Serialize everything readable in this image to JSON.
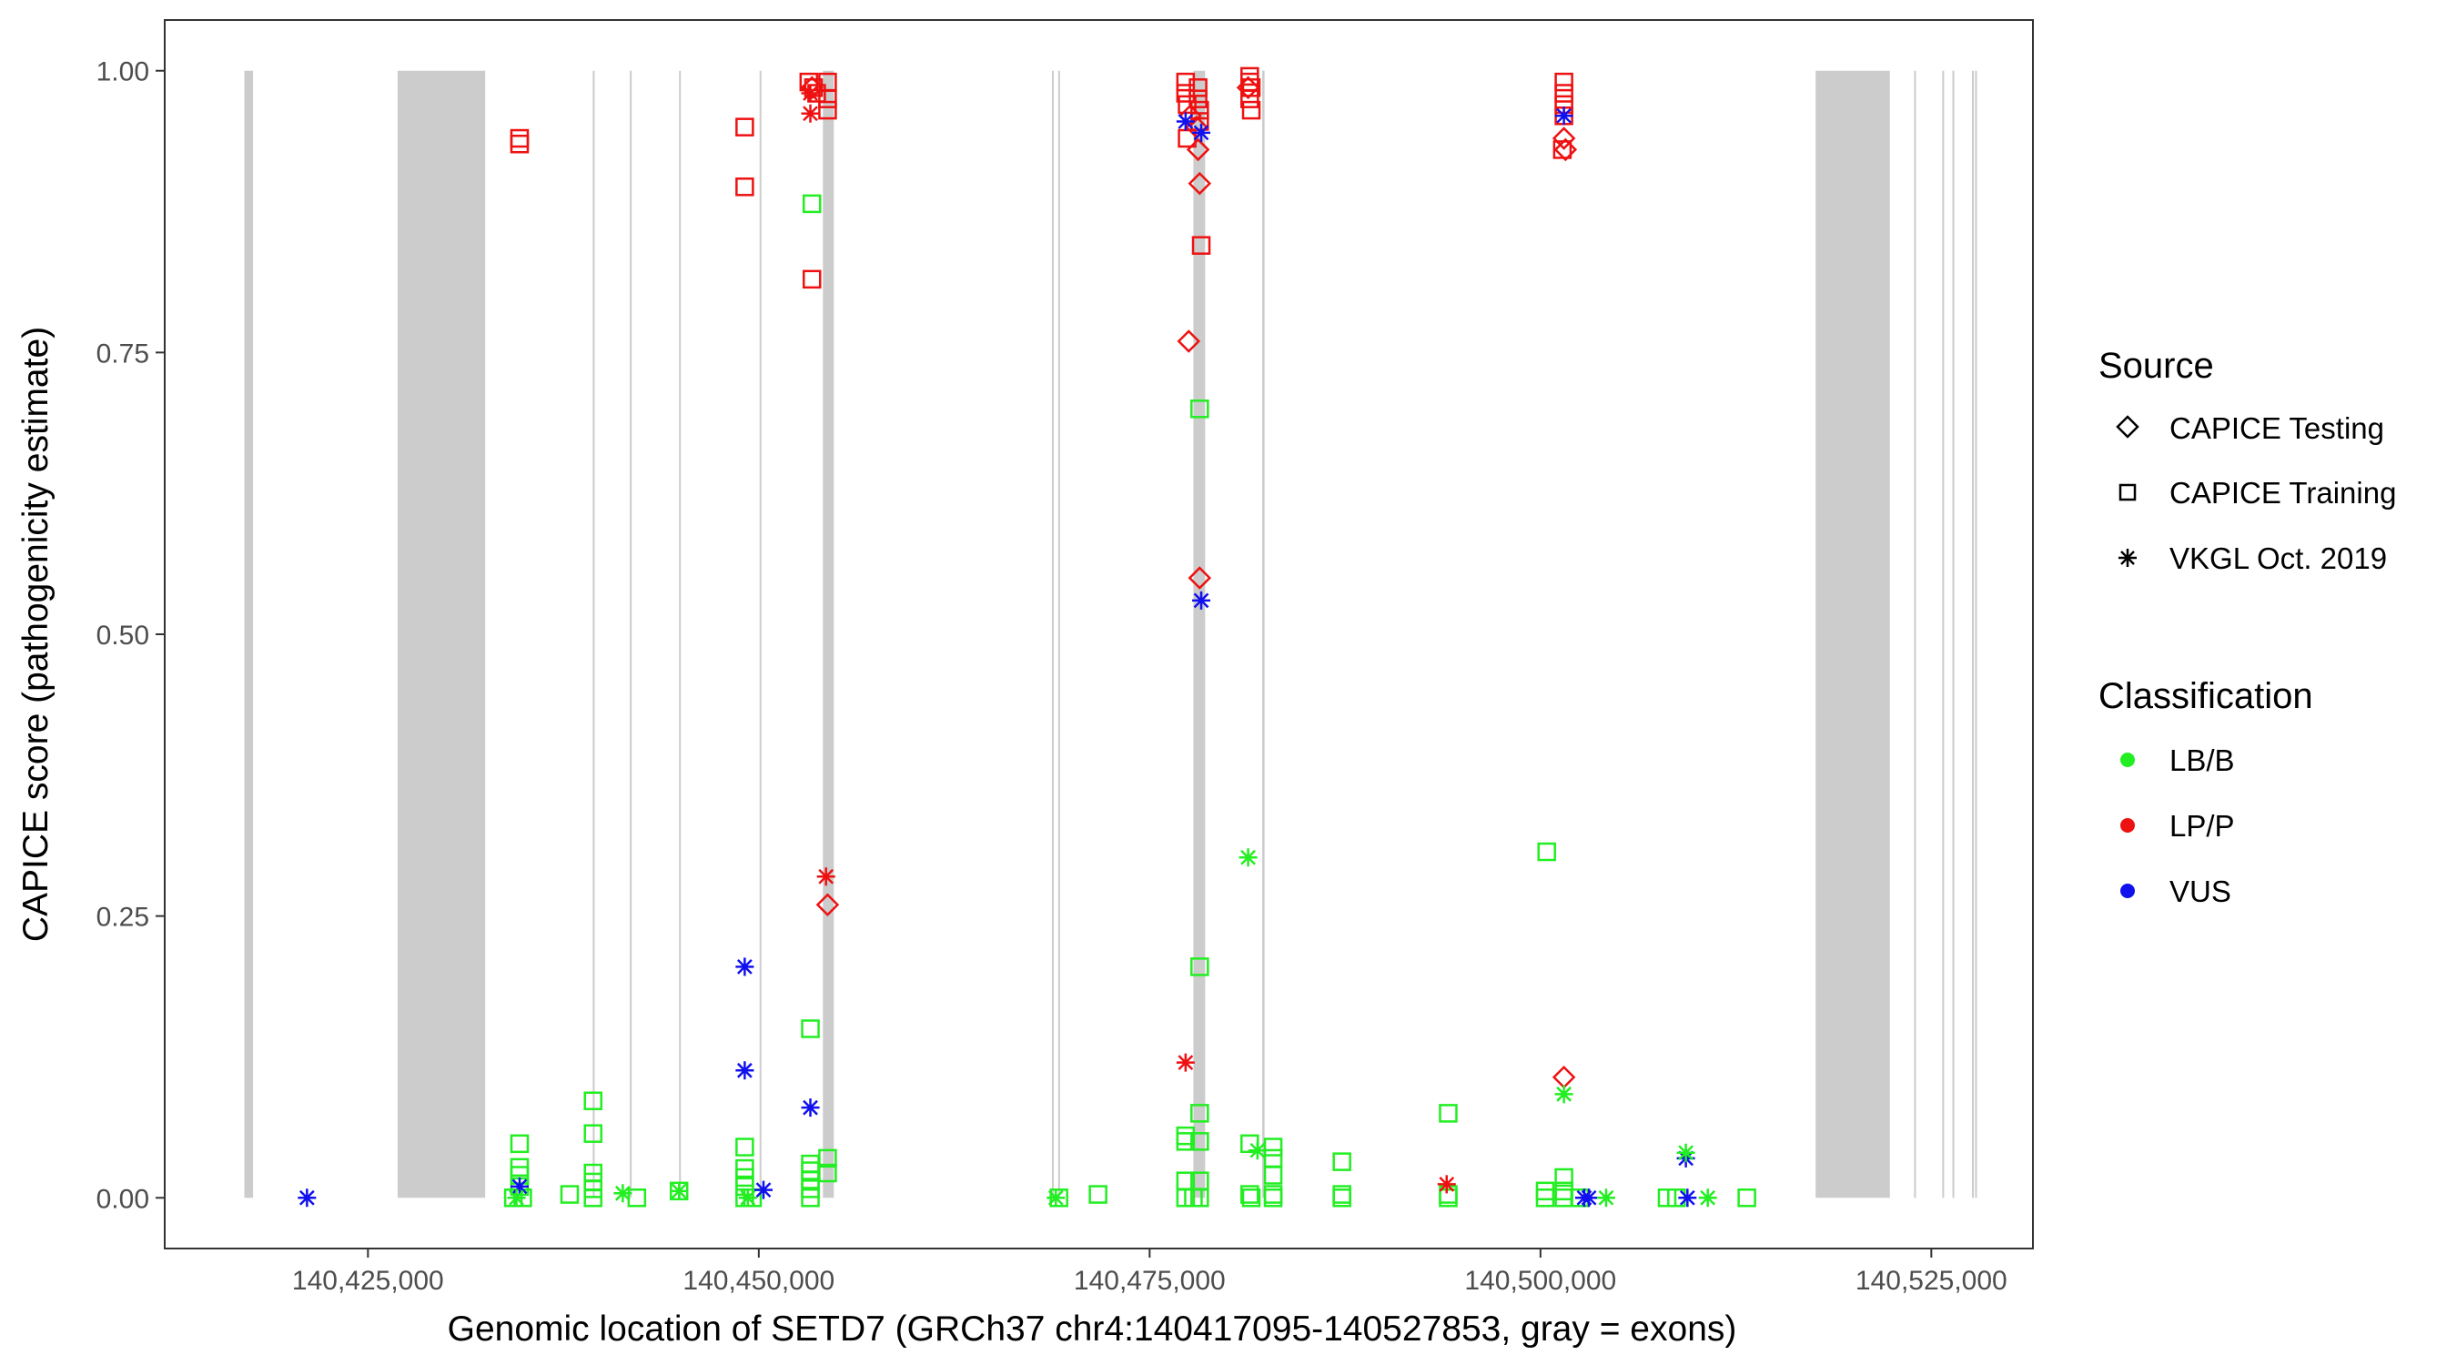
{
  "chart_data": {
    "type": "scatter",
    "xlabel": "Genomic location of SETD7 (GRCh37 chr4:140417095-140527853, gray = exons)",
    "ylabel": "CAPICE score (pathogenicity estimate)",
    "xlim": [
      140412000,
      140531500
    ],
    "ylim": [
      -0.045,
      1.045
    ],
    "xticks": [
      140425000,
      140450000,
      140475000,
      140500000,
      140525000
    ],
    "xtick_labels": [
      "140,425,000",
      "140,450,000",
      "140,475,000",
      "140,500,000",
      "140,525,000"
    ],
    "yticks": [
      0,
      0.25,
      0.5,
      0.75,
      1.0
    ],
    "ytick_labels": [
      "0.00",
      "0.25",
      "0.50",
      "0.75",
      "1.00"
    ],
    "grid": false,
    "legend_position": "right",
    "colors": {
      "LB/B": "#22ee22",
      "LP/P": "#ee1111",
      "VUS": "#1111ee",
      "exon": "#cccccc",
      "frame": "#333333"
    },
    "exons": [
      [
        140417095,
        140417650
      ],
      [
        140426900,
        140432500
      ],
      [
        140439380,
        140439500
      ],
      [
        140441750,
        140441850
      ],
      [
        140444900,
        140445000
      ],
      [
        140450050,
        140450150
      ],
      [
        140454100,
        140454800
      ],
      [
        140468750,
        140468850
      ],
      [
        140469150,
        140469250
      ],
      [
        140477800,
        140478550
      ],
      [
        140482200,
        140482350
      ],
      [
        140517600,
        140522350
      ],
      [
        140523900,
        140524000
      ],
      [
        140525700,
        140525800
      ],
      [
        140526350,
        140526450
      ],
      [
        140527600,
        140527700
      ],
      [
        140527800,
        140527853
      ]
    ],
    "legend": {
      "source_title": "Source",
      "source_items": [
        {
          "label": "CAPICE Testing",
          "shape": "diamond"
        },
        {
          "label": "CAPICE Training",
          "shape": "square"
        },
        {
          "label": "VKGL Oct. 2019",
          "shape": "star"
        }
      ],
      "class_title": "Classification",
      "class_items": [
        {
          "label": "LB/B",
          "color": "#22ee22"
        },
        {
          "label": "LP/P",
          "color": "#ee1111"
        },
        {
          "label": "VUS",
          "color": "#1111ee"
        }
      ]
    },
    "series": [
      {
        "shape": "diamond",
        "points": [
          [
            140453400,
            0.985,
            "LP/P"
          ],
          [
            140454400,
            0.26,
            "LP/P"
          ],
          [
            140477500,
            0.76,
            "LP/P"
          ],
          [
            140477600,
            0.96,
            "LP/P"
          ],
          [
            140478000,
            0.95,
            "LP/P"
          ],
          [
            140478100,
            0.93,
            "LP/P"
          ],
          [
            140478200,
            0.9,
            "LP/P"
          ],
          [
            140478200,
            0.55,
            "LP/P"
          ],
          [
            140481300,
            0.985,
            "LP/P"
          ],
          [
            140501500,
            0.94,
            "LP/P"
          ],
          [
            140501500,
            0.107,
            "LP/P"
          ],
          [
            140501600,
            0.93,
            "LP/P"
          ]
        ]
      },
      {
        "shape": "square",
        "points": [
          [
            140434700,
            0.94,
            "LP/P"
          ],
          [
            140434700,
            0.935,
            "LP/P"
          ],
          [
            140449100,
            0.95,
            "LP/P"
          ],
          [
            140449100,
            0.897,
            "LP/P"
          ],
          [
            140453400,
            0.815,
            "LP/P"
          ],
          [
            140453200,
            0.99,
            "LP/P"
          ],
          [
            140453500,
            0.985,
            "LP/P"
          ],
          [
            140453700,
            0.98,
            "LP/P"
          ],
          [
            140454400,
            0.99,
            "LP/P"
          ],
          [
            140454400,
            0.975,
            "LP/P"
          ],
          [
            140454400,
            0.965,
            "LP/P"
          ],
          [
            140477300,
            0.99,
            "LP/P"
          ],
          [
            140477300,
            0.98,
            "LP/P"
          ],
          [
            140477400,
            0.97,
            "LP/P"
          ],
          [
            140477400,
            0.94,
            "LP/P"
          ],
          [
            140478100,
            0.985,
            "LP/P"
          ],
          [
            140478100,
            0.975,
            "LP/P"
          ],
          [
            140478200,
            0.965,
            "LP/P"
          ],
          [
            140478200,
            0.955,
            "LP/P"
          ],
          [
            140478300,
            0.845,
            "LP/P"
          ],
          [
            140481400,
            0.995,
            "LP/P"
          ],
          [
            140481400,
            0.99,
            "LP/P"
          ],
          [
            140481500,
            0.985,
            "LP/P"
          ],
          [
            140481400,
            0.975,
            "LP/P"
          ],
          [
            140481500,
            0.965,
            "LP/P"
          ],
          [
            140501500,
            0.99,
            "LP/P"
          ],
          [
            140501500,
            0.98,
            "LP/P"
          ],
          [
            140501500,
            0.97,
            "LP/P"
          ],
          [
            140501500,
            0.96,
            "LP/P"
          ],
          [
            140501400,
            0.93,
            "LP/P"
          ],
          [
            140453400,
            0.882,
            "LB/B"
          ],
          [
            140478200,
            0.7,
            "LB/B"
          ],
          [
            140478200,
            0.205,
            "LB/B"
          ],
          [
            140453300,
            0.15,
            "LB/B"
          ],
          [
            140500400,
            0.307,
            "LB/B"
          ],
          [
            140434300,
            0.0,
            "LB/B"
          ],
          [
            140434700,
            0.048,
            "LB/B"
          ],
          [
            140434700,
            0.027,
            "LB/B"
          ],
          [
            140434700,
            0.02,
            "LB/B"
          ],
          [
            140434700,
            0.01,
            "LB/B"
          ],
          [
            140434900,
            0.0,
            "LB/B"
          ],
          [
            140437900,
            0.003,
            "LB/B"
          ],
          [
            140439400,
            0.086,
            "LB/B"
          ],
          [
            140439400,
            0.057,
            "LB/B"
          ],
          [
            140439400,
            0.022,
            "LB/B"
          ],
          [
            140439400,
            0.014,
            "LB/B"
          ],
          [
            140439400,
            0.008,
            "LB/B"
          ],
          [
            140439400,
            0.0,
            "LB/B"
          ],
          [
            140442200,
            0.0,
            "LB/B"
          ],
          [
            140444900,
            0.006,
            "LB/B"
          ],
          [
            140449100,
            0.045,
            "LB/B"
          ],
          [
            140449100,
            0.026,
            "LB/B"
          ],
          [
            140449100,
            0.018,
            "LB/B"
          ],
          [
            140449100,
            0.01,
            "LB/B"
          ],
          [
            140449100,
            0.0,
            "LB/B"
          ],
          [
            140449600,
            0.0,
            "LB/B"
          ],
          [
            140453300,
            0.03,
            "LB/B"
          ],
          [
            140453300,
            0.024,
            "LB/B"
          ],
          [
            140453300,
            0.016,
            "LB/B"
          ],
          [
            140453300,
            0.008,
            "LB/B"
          ],
          [
            140453300,
            0.0,
            "LB/B"
          ],
          [
            140454400,
            0.035,
            "LB/B"
          ],
          [
            140454400,
            0.022,
            "LB/B"
          ],
          [
            140469200,
            0.0,
            "LB/B"
          ],
          [
            140471700,
            0.003,
            "LB/B"
          ],
          [
            140477300,
            0.055,
            "LB/B"
          ],
          [
            140477300,
            0.05,
            "LB/B"
          ],
          [
            140477300,
            0.015,
            "LB/B"
          ],
          [
            140477300,
            0.0,
            "LB/B"
          ],
          [
            140477800,
            0.0,
            "LB/B"
          ],
          [
            140478200,
            0.075,
            "LB/B"
          ],
          [
            140478200,
            0.05,
            "LB/B"
          ],
          [
            140478200,
            0.015,
            "LB/B"
          ],
          [
            140478200,
            0.0,
            "LB/B"
          ],
          [
            140481400,
            0.048,
            "LB/B"
          ],
          [
            140481400,
            0.003,
            "LB/B"
          ],
          [
            140481500,
            0.0,
            "LB/B"
          ],
          [
            140482900,
            0.045,
            "LB/B"
          ],
          [
            140482900,
            0.035,
            "LB/B"
          ],
          [
            140482900,
            0.02,
            "LB/B"
          ],
          [
            140482900,
            0.003,
            "LB/B"
          ],
          [
            140482900,
            0.0,
            "LB/B"
          ],
          [
            140487300,
            0.032,
            "LB/B"
          ],
          [
            140487300,
            0.003,
            "LB/B"
          ],
          [
            140487300,
            0.0,
            "LB/B"
          ],
          [
            140494100,
            0.075,
            "LB/B"
          ],
          [
            140494100,
            0.003,
            "LB/B"
          ],
          [
            140494100,
            0.0,
            "LB/B"
          ],
          [
            140500300,
            0.006,
            "LB/B"
          ],
          [
            140500300,
            0.0,
            "LB/B"
          ],
          [
            140501500,
            0.018,
            "LB/B"
          ],
          [
            140501500,
            0.006,
            "LB/B"
          ],
          [
            140501500,
            0.0,
            "LB/B"
          ],
          [
            140502500,
            0.0,
            "LB/B"
          ],
          [
            140508100,
            0.0,
            "LB/B"
          ],
          [
            140508700,
            0.0,
            "LB/B"
          ],
          [
            140513200,
            0.0,
            "LB/B"
          ]
        ]
      },
      {
        "shape": "star",
        "points": [
          [
            140421100,
            0.0,
            "VUS"
          ],
          [
            140434700,
            0.01,
            "VUS"
          ],
          [
            140449100,
            0.205,
            "VUS"
          ],
          [
            140449100,
            0.113,
            "VUS"
          ],
          [
            140450300,
            0.007,
            "VUS"
          ],
          [
            140453300,
            0.08,
            "VUS"
          ],
          [
            140477300,
            0.955,
            "VUS"
          ],
          [
            140478300,
            0.945,
            "VUS"
          ],
          [
            140478300,
            0.53,
            "VUS"
          ],
          [
            140501500,
            0.96,
            "VUS"
          ],
          [
            140502800,
            0.0,
            "VUS"
          ],
          [
            140503100,
            0.0,
            "VUS"
          ],
          [
            140509300,
            0.035,
            "VUS"
          ],
          [
            140509400,
            0.0,
            "VUS"
          ],
          [
            140453300,
            0.98,
            "LP/P"
          ],
          [
            140453300,
            0.962,
            "LP/P"
          ],
          [
            140454300,
            0.285,
            "LP/P"
          ],
          [
            140477300,
            0.12,
            "LP/P"
          ],
          [
            140494000,
            0.012,
            "LP/P"
          ],
          [
            140481300,
            0.302,
            "LB/B"
          ],
          [
            140434500,
            0.0,
            "LB/B"
          ],
          [
            140441300,
            0.004,
            "LB/B"
          ],
          [
            140444900,
            0.006,
            "LB/B"
          ],
          [
            140449300,
            0.0,
            "LB/B"
          ],
          [
            140469000,
            0.0,
            "LB/B"
          ],
          [
            140481900,
            0.042,
            "LB/B"
          ],
          [
            140501500,
            0.092,
            "LB/B"
          ],
          [
            140504200,
            0.0,
            "LB/B"
          ],
          [
            140509300,
            0.04,
            "LB/B"
          ],
          [
            140510700,
            0.0,
            "LB/B"
          ]
        ]
      }
    ]
  }
}
